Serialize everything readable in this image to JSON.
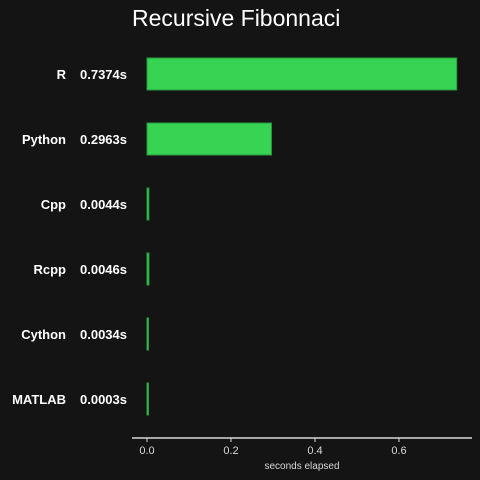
{
  "chart_data": {
    "type": "bar",
    "orientation": "horizontal",
    "title": "Recursive Fibonnaci",
    "xlabel": "seconds elapsed",
    "ylabel": "",
    "categories": [
      "R",
      "Python",
      "Cpp",
      "Rcpp",
      "Cython",
      "MATLAB"
    ],
    "value_labels": [
      "0.7374s",
      "0.2963s",
      "0.0044s",
      "0.0046s",
      "0.0034s",
      "0.0003s"
    ],
    "values": [
      0.7374,
      0.2963,
      0.0044,
      0.0046,
      0.0034,
      0.0003
    ],
    "xlim": [
      0,
      0.75
    ],
    "xticks": [
      0.0,
      0.2,
      0.4,
      0.6
    ],
    "xtick_labels": [
      "0.0",
      "0.2",
      "0.4",
      "0.6"
    ],
    "grid": false,
    "legend": "none",
    "colors": {
      "background": "#141414",
      "bar_fill": "#37d453",
      "bar_stroke": "#2a9a3f",
      "text": "#ffffff",
      "axis": "#d8d8d8"
    }
  }
}
